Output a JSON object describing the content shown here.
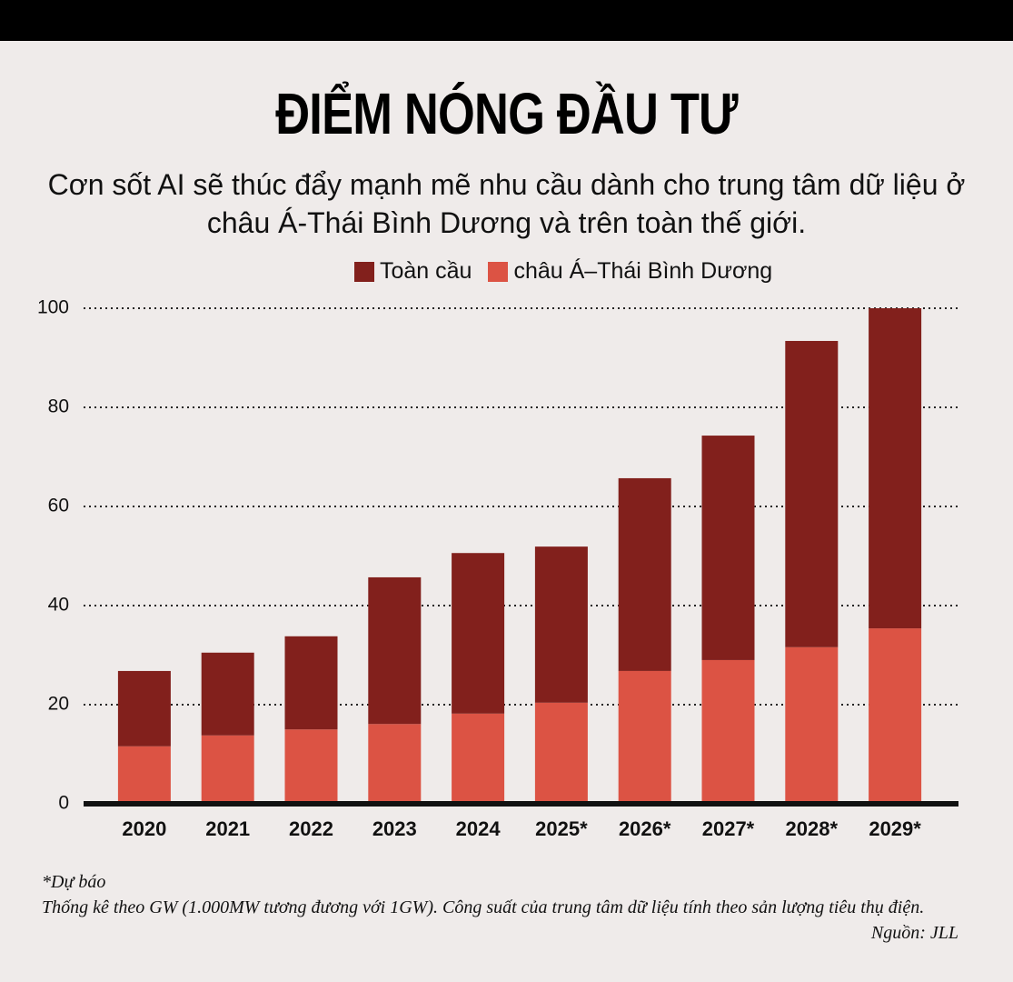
{
  "chart_data": {
    "type": "stacked-bar",
    "title": "ĐIỂM NÓNG ĐẦU TƯ",
    "subtitle": "Cơn sốt AI sẽ thúc đẩy mạnh mẽ nhu cầu dành cho trung tâm dữ liệu ở châu Á-Thái Bình Dương và trên toàn thế giới.",
    "categories": [
      "2020",
      "2021",
      "2022",
      "2023",
      "2024",
      "2025*",
      "2026*",
      "2027*",
      "2028*",
      "2029*"
    ],
    "series": [
      {
        "name": "châu Á–Thái Bình Dương",
        "color": "#dc5344",
        "values": [
          11.6,
          13.8,
          15.0,
          16.1,
          18.2,
          20.4,
          26.8,
          29.0,
          31.6,
          35.4
        ]
      },
      {
        "name": "Toàn cầu",
        "color": "#82201c",
        "values": [
          15.2,
          16.7,
          18.8,
          29.6,
          32.4,
          31.5,
          38.9,
          45.3,
          61.8,
          64.6
        ]
      }
    ],
    "ylim": [
      0,
      100
    ],
    "yticks": [
      0,
      20,
      40,
      60,
      80,
      100
    ],
    "grid": true,
    "notes": [
      "*Dự báo",
      "Thống kê theo GW (1.000MW tương đương với 1GW). Công suất của trung tâm dữ liệu tính theo sản lượng tiêu thụ điện."
    ],
    "source": "Nguồn: JLL"
  }
}
